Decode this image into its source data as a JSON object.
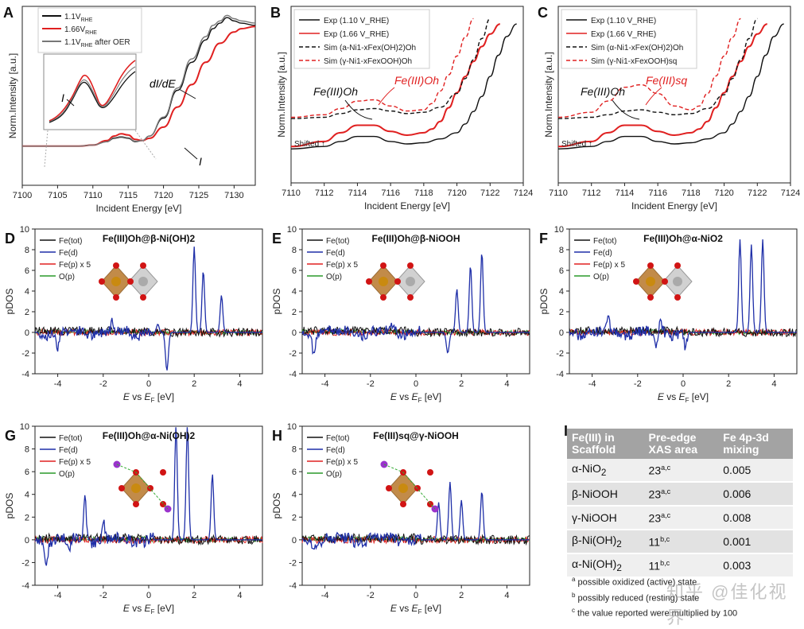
{
  "chart_data": [
    {
      "id": "A",
      "type": "line",
      "panel_label": "A",
      "xlabel": "Incident Energy [eV]",
      "ylabel": "Norm.Intensity [a.u.]",
      "xlim": [
        7100,
        7133
      ],
      "xticks": [
        7100,
        7105,
        7110,
        7115,
        7120,
        7125,
        7130
      ],
      "annotations": [
        "dI/dE",
        "I",
        "I"
      ],
      "series": [
        {
          "name": "1.1V_RHE",
          "label_main": "1.1V",
          "label_sub": "RHE",
          "label_rest": "",
          "color": "#111111",
          "x": [
            7100,
            7108,
            7110,
            7112,
            7113,
            7114,
            7115,
            7116,
            7117,
            7118,
            7120,
            7122,
            7124,
            7126,
            7127,
            7128,
            7129,
            7130,
            7131,
            7133
          ],
          "y": [
            0,
            0,
            0.01,
            0.04,
            0.07,
            0.08,
            0.07,
            0.04,
            0.05,
            0.09,
            0.25,
            0.5,
            0.75,
            0.95,
            1.05,
            1.1,
            1.15,
            1.12,
            1.1,
            1.08
          ]
        },
        {
          "name": "1.66V_RHE",
          "label_main": "1.66V",
          "label_sub": "RHE",
          "label_rest": "",
          "color": "#e02020",
          "x": [
            7100,
            7108,
            7110,
            7112,
            7113,
            7114,
            7115,
            7116,
            7117,
            7118,
            7120,
            7122,
            7124,
            7126,
            7128,
            7130,
            7131,
            7133
          ],
          "y": [
            0,
            0,
            0.01,
            0.05,
            0.09,
            0.11,
            0.1,
            0.06,
            0.05,
            0.07,
            0.17,
            0.35,
            0.55,
            0.75,
            0.92,
            1.02,
            1.05,
            1.07
          ]
        },
        {
          "name": "1.1V_RHE after OER",
          "label_main": "1.1V",
          "label_sub": "RHE",
          "label_rest": " after OER",
          "color": "#777777",
          "x": [
            7100,
            7108,
            7110,
            7112,
            7113,
            7114,
            7115,
            7116,
            7117,
            7118,
            7120,
            7122,
            7124,
            7126,
            7127,
            7128,
            7129,
            7130,
            7131,
            7133
          ],
          "y": [
            0,
            0,
            0.01,
            0.04,
            0.075,
            0.085,
            0.075,
            0.045,
            0.05,
            0.09,
            0.26,
            0.52,
            0.78,
            0.98,
            1.08,
            1.12,
            1.17,
            1.14,
            1.12,
            1.1
          ]
        }
      ]
    },
    {
      "id": "B",
      "type": "line",
      "panel_label": "B",
      "xlabel": "Incident Energy [eV]",
      "ylabel": "Norm.Intensity [a.u.]",
      "xlim": [
        7110,
        7124
      ],
      "xticks": [
        7110,
        7112,
        7114,
        7116,
        7118,
        7120,
        7122,
        7124
      ],
      "annotations": [
        "Fe(III)Oh",
        "Fe(III)Oh",
        "Shifted"
      ],
      "series": [
        {
          "name": "Exp (1.10 V_RHE)",
          "color": "#111111",
          "dash": false,
          "x": [
            7110,
            7112,
            7113,
            7114,
            7115,
            7116,
            7117,
            7118,
            7119,
            7120,
            7120.5,
            7121,
            7121.5,
            7122,
            7122.5,
            7123,
            7123.6
          ],
          "y": [
            0,
            0.02,
            0.06,
            0.1,
            0.1,
            0.06,
            0.04,
            0.05,
            0.08,
            0.13,
            0.2,
            0.3,
            0.42,
            0.58,
            0.75,
            0.9,
            1.0
          ]
        },
        {
          "name": "Exp (1.66 V_RHE)",
          "color": "#e02020",
          "dash": false,
          "x": [
            7110,
            7112,
            7113,
            7114,
            7115,
            7116,
            7117,
            7118,
            7118.5,
            7119,
            7119.5,
            7120,
            7120.5,
            7121,
            7121.5,
            7122,
            7122.6
          ],
          "y": [
            0.02,
            0.06,
            0.13,
            0.19,
            0.19,
            0.14,
            0.11,
            0.13,
            0.16,
            0.22,
            0.33,
            0.45,
            0.58,
            0.7,
            0.82,
            0.92,
            1.0
          ]
        },
        {
          "name": "Sim (a-Ni1-xFex(OH)2)Oh",
          "color": "#111111",
          "dash": true,
          "x": [
            7110,
            7112,
            7113,
            7114,
            7115,
            7116,
            7117,
            7118,
            7119,
            7120,
            7120.5,
            7121,
            7121.5,
            7122
          ],
          "y": [
            0.2,
            0.21,
            0.24,
            0.27,
            0.28,
            0.26,
            0.24,
            0.25,
            0.29,
            0.4,
            0.52,
            0.67,
            0.84,
            1.0
          ]
        },
        {
          "name": "Sim (γ-Ni1-xFexOOH)Oh",
          "color": "#e02020",
          "dash": true,
          "x": [
            7110,
            7112,
            7113,
            7114,
            7115,
            7116,
            7117,
            7118,
            7118.5,
            7119,
            7119.5,
            7120,
            7120.5,
            7121
          ],
          "y": [
            0.21,
            0.23,
            0.28,
            0.34,
            0.35,
            0.3,
            0.26,
            0.27,
            0.32,
            0.42,
            0.55,
            0.7,
            0.85,
            1.0
          ]
        }
      ]
    },
    {
      "id": "C",
      "type": "line",
      "panel_label": "C",
      "xlabel": "Incident Energy [eV]",
      "ylabel": "Norm.Intensity [a.u.]",
      "xlim": [
        7110,
        7124
      ],
      "xticks": [
        7110,
        7112,
        7114,
        7116,
        7118,
        7120,
        7122,
        7124
      ],
      "annotations": [
        "Fe(III)Oh",
        "Fe(III)sq",
        "Shifted"
      ],
      "series": [
        {
          "name": "Exp (1.10 V_RHE)",
          "color": "#111111",
          "dash": false,
          "x": [
            7110,
            7112,
            7113,
            7114,
            7115,
            7116,
            7117,
            7118,
            7119,
            7120,
            7120.5,
            7121,
            7121.5,
            7122,
            7122.5,
            7123,
            7123.6
          ],
          "y": [
            0,
            0.02,
            0.06,
            0.1,
            0.1,
            0.06,
            0.04,
            0.05,
            0.08,
            0.13,
            0.2,
            0.3,
            0.42,
            0.58,
            0.75,
            0.9,
            1.0
          ]
        },
        {
          "name": "Exp (1.66 V_RHE)",
          "color": "#e02020",
          "dash": false,
          "x": [
            7110,
            7112,
            7113,
            7114,
            7115,
            7116,
            7117,
            7118,
            7118.5,
            7119,
            7119.5,
            7120,
            7120.5,
            7121,
            7121.5,
            7122,
            7122.6
          ],
          "y": [
            0.02,
            0.06,
            0.13,
            0.19,
            0.19,
            0.14,
            0.11,
            0.13,
            0.16,
            0.22,
            0.33,
            0.45,
            0.58,
            0.7,
            0.82,
            0.92,
            1.0
          ]
        },
        {
          "name": "Sim (α-Ni1-xFex(OH)2)Oh",
          "color": "#111111",
          "dash": true,
          "x": [
            7110,
            7112,
            7113,
            7114,
            7115,
            7116,
            7117,
            7118,
            7119,
            7120,
            7120.5,
            7121,
            7121.5,
            7122
          ],
          "y": [
            0.2,
            0.21,
            0.23,
            0.26,
            0.27,
            0.25,
            0.23,
            0.24,
            0.28,
            0.39,
            0.52,
            0.67,
            0.84,
            1.0
          ]
        },
        {
          "name": "Sim (γ-Ni1-xFexOOH)sq",
          "color": "#e02020",
          "dash": true,
          "x": [
            7110,
            7112,
            7113,
            7114,
            7115,
            7116,
            7117,
            7118,
            7118.5,
            7119,
            7119.5,
            7120,
            7120.5,
            7121
          ],
          "y": [
            0.21,
            0.25,
            0.34,
            0.45,
            0.47,
            0.4,
            0.3,
            0.27,
            0.3,
            0.4,
            0.54,
            0.7,
            0.85,
            1.0
          ]
        }
      ]
    },
    {
      "id": "D",
      "type": "line",
      "panel_label": "D",
      "title": "Fe(III)Oh@β-Ni(OH)2",
      "xlabel": "E vs EF [eV]",
      "ylabel": "pDOS",
      "xlim": [
        -5,
        5
      ],
      "ylim": [
        -4,
        10
      ],
      "xticks": [
        -4,
        -2,
        0,
        2,
        4
      ],
      "yticks": [
        -4,
        -2,
        0,
        2,
        4,
        6,
        8,
        10
      ],
      "peaks": {
        "up": [
          [
            2.0,
            8.3
          ],
          [
            2.4,
            6.0
          ],
          [
            3.2,
            3.6
          ],
          [
            -1.6,
            1.2
          ],
          [
            0.4,
            0.8
          ]
        ],
        "dn": [
          [
            0.8,
            -3.7
          ],
          [
            -4.0,
            -1.5
          ]
        ]
      },
      "series": [
        {
          "name": "Fe(tot)",
          "color": "#111111"
        },
        {
          "name": "Fe(d)",
          "color": "#1f2fa8"
        },
        {
          "name": "Fe(p) x 5",
          "color": "#e02020"
        },
        {
          "name": "O(p)",
          "color": "#2a9a2a"
        }
      ]
    },
    {
      "id": "E",
      "type": "line",
      "panel_label": "E",
      "title": "Fe(III)Oh@β-NiOOH",
      "xlabel": "E vs EF [eV]",
      "ylabel": "pDOS",
      "xlim": [
        -5,
        5
      ],
      "ylim": [
        -4,
        10
      ],
      "xticks": [
        -4,
        -2,
        0,
        2,
        4
      ],
      "yticks": [
        -4,
        -2,
        0,
        2,
        4,
        6,
        8,
        10
      ],
      "peaks": {
        "up": [
          [
            1.8,
            4.2
          ],
          [
            2.4,
            6.5
          ],
          [
            2.9,
            7.8
          ],
          [
            -1.0,
            0.9
          ]
        ],
        "dn": [
          [
            1.4,
            -2.0
          ],
          [
            -4.5,
            -1.7
          ]
        ]
      },
      "series": [
        {
          "name": "Fe(tot)",
          "color": "#111111"
        },
        {
          "name": "Fe(d)",
          "color": "#1f2fa8"
        },
        {
          "name": "Fe(p) x 5",
          "color": "#e02020"
        },
        {
          "name": "O(p)",
          "color": "#2a9a2a"
        }
      ]
    },
    {
      "id": "F",
      "type": "line",
      "panel_label": "F",
      "title": "Fe(III)Oh@α-NiO2",
      "xlabel": "E vs EF [eV]",
      "ylabel": "pDOS",
      "xlim": [
        -5,
        5
      ],
      "ylim": [
        -4,
        10
      ],
      "xticks": [
        -4,
        -2,
        0,
        2,
        4
      ],
      "yticks": [
        -4,
        -2,
        0,
        2,
        4,
        6,
        8,
        10
      ],
      "peaks": {
        "up": [
          [
            2.5,
            9.0
          ],
          [
            3.0,
            8.5
          ],
          [
            3.5,
            9.0
          ],
          [
            -3.3,
            1.8
          ],
          [
            -1.0,
            1.0
          ]
        ],
        "dn": [
          [
            -1.2,
            -1.8
          ],
          [
            0.1,
            -1.6
          ]
        ]
      },
      "series": [
        {
          "name": "Fe(tot)",
          "color": "#111111"
        },
        {
          "name": "Fe(d)",
          "color": "#1f2fa8"
        },
        {
          "name": "Fe(p) x 5",
          "color": "#e02020"
        },
        {
          "name": "O(p)",
          "color": "#2a9a2a"
        }
      ]
    },
    {
      "id": "G",
      "type": "line",
      "panel_label": "G",
      "title": "Fe(III)Oh@α-Ni(OH)2",
      "xlabel": "E vs EF [eV]",
      "ylabel": "pDOS",
      "xlim": [
        -5,
        5
      ],
      "ylim": [
        -4,
        10
      ],
      "xticks": [
        -4,
        -2,
        0,
        2,
        4
      ],
      "yticks": [
        -4,
        -2,
        0,
        2,
        4,
        6,
        8,
        10
      ],
      "peaks": {
        "up": [
          [
            1.2,
            10.0
          ],
          [
            1.7,
            10.0
          ],
          [
            2.8,
            5.8
          ],
          [
            -2.8,
            4.0
          ],
          [
            -2.0,
            1.8
          ]
        ],
        "dn": [
          [
            -4.5,
            -2.0
          ],
          [
            -3.5,
            -1.2
          ]
        ]
      },
      "series": [
        {
          "name": "Fe(tot)",
          "color": "#111111"
        },
        {
          "name": "Fe(d)",
          "color": "#1f2fa8"
        },
        {
          "name": "Fe(p) x 5",
          "color": "#e02020"
        },
        {
          "name": "O(p)",
          "color": "#2a9a2a"
        }
      ]
    },
    {
      "id": "H",
      "type": "line",
      "panel_label": "H",
      "title": "Fe(III)sq@γ-NiOOH",
      "xlabel": "E vs EF [eV]",
      "ylabel": "pDOS",
      "xlim": [
        -5,
        5
      ],
      "ylim": [
        -4,
        10
      ],
      "xticks": [
        -4,
        -2,
        0,
        2,
        4
      ],
      "yticks": [
        -4,
        -2,
        0,
        2,
        4,
        6,
        8,
        10
      ],
      "peaks": {
        "up": [
          [
            1.0,
            3.3
          ],
          [
            1.5,
            5.1
          ],
          [
            2.0,
            3.5
          ],
          [
            2.9,
            4.3
          ]
        ],
        "dn": []
      },
      "series": [
        {
          "name": "Fe(tot)",
          "color": "#111111"
        },
        {
          "name": "Fe(d)",
          "color": "#1f2fa8"
        },
        {
          "name": "Fe(p) x 5",
          "color": "#e02020"
        },
        {
          "name": "O(p)",
          "color": "#2a9a2a"
        }
      ]
    },
    {
      "id": "I",
      "type": "table",
      "panel_label": "I",
      "headers": [
        "Fe(III) in Scaffold",
        "Pre-edge XAS area",
        "Fe 4p-3d mixing"
      ],
      "rows": [
        {
          "scaffold": "α-NiO",
          "sub": "2",
          "area": "23",
          "note": "a,c",
          "mixing": "0.005"
        },
        {
          "scaffold": "β-NiOOH",
          "sub": "",
          "area": "23",
          "note": "a,c",
          "mixing": "0.006"
        },
        {
          "scaffold": "γ-NiOOH",
          "sub": "",
          "area": "23",
          "note": "a,c",
          "mixing": "0.008"
        },
        {
          "scaffold": "β-Ni(OH)",
          "sub": "2",
          "area": "11",
          "note": "b,c",
          "mixing": "0.001"
        },
        {
          "scaffold": "α-Ni(OH)",
          "sub": "2",
          "area": "11",
          "note": "b,c",
          "mixing": "0.003"
        }
      ],
      "notes": [
        {
          "mark": "a",
          "text": "possible oxidized (active) state"
        },
        {
          "mark": "b",
          "text": "possibly reduced (resting) state"
        },
        {
          "mark": "c",
          "text": "the value reported were multiplied by 100"
        }
      ]
    }
  ],
  "watermark": "知乎 @佳化视界",
  "shifted_label": "Shifted ↑"
}
